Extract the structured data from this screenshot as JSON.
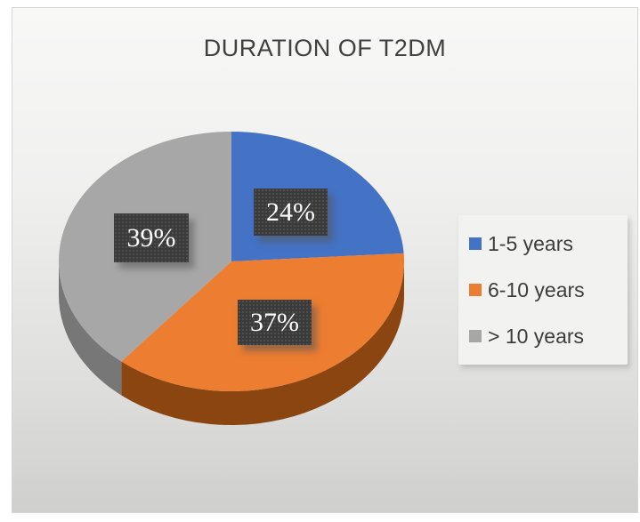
{
  "figure": {
    "background_top": "#f8f8f7",
    "background_bottom": "#cfcfce"
  },
  "chart_data": {
    "type": "pie",
    "title": "DURATION OF T2DM",
    "effect": "3d",
    "start_angle_deg": 0,
    "direction": "clockwise",
    "legend_position": "right",
    "grid": false,
    "slices": [
      {
        "label": "1-5 years",
        "value": 24,
        "display": "24%",
        "color": "#4472C4",
        "side_color": "#2E4E86"
      },
      {
        "label": "6-10 years",
        "value": 37,
        "display": "37%",
        "color": "#ED7D31",
        "side_color": "#8B4510"
      },
      {
        "label": "> 10 years",
        "value": 39,
        "display": "39%",
        "color": "#A7A7A7",
        "side_color": "#777777"
      }
    ],
    "data_label_style": {
      "background": "#3B3B3B",
      "text_color": "#FFFFFF"
    }
  }
}
